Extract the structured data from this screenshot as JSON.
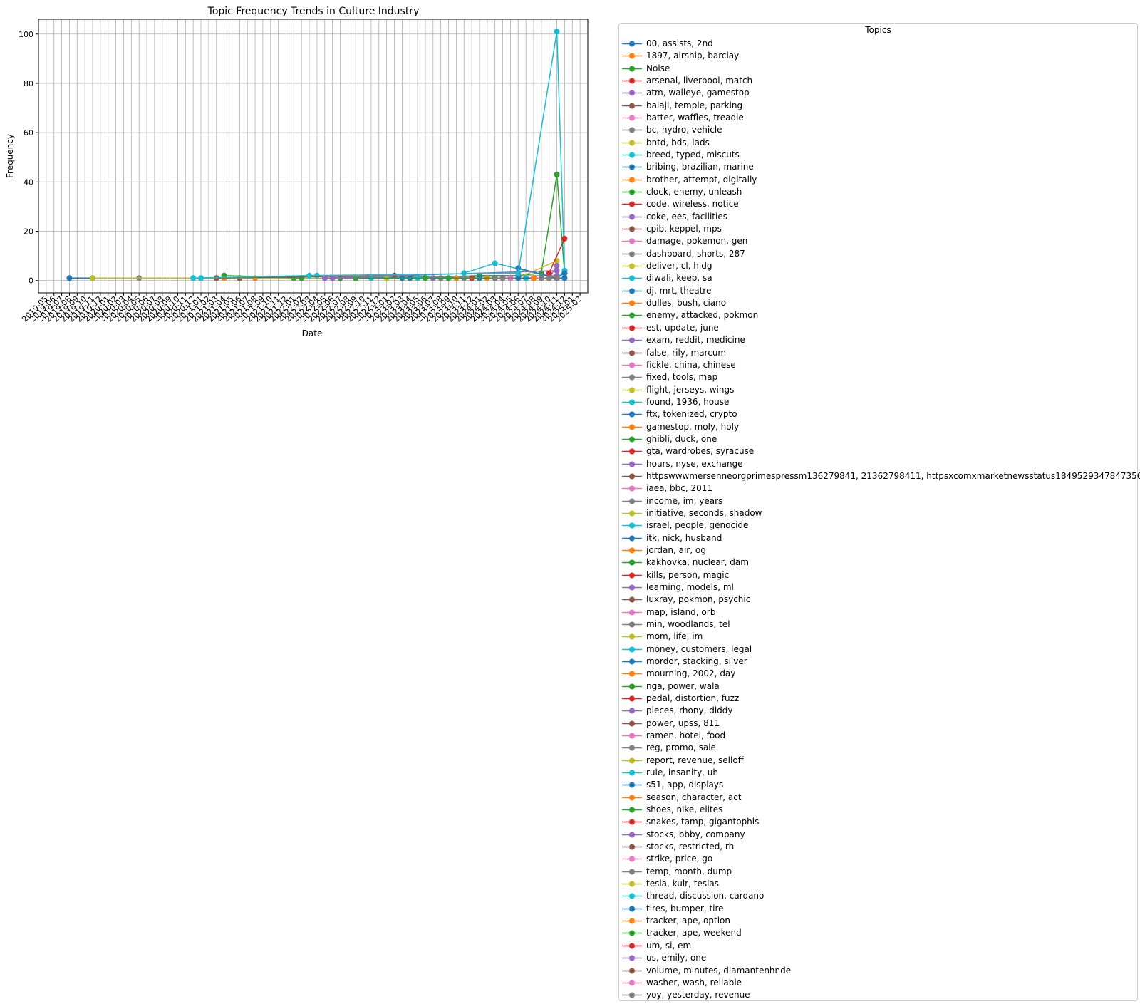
{
  "chart_data": {
    "type": "line",
    "title": "Topic Frequency Trends in Culture Industry",
    "xlabel": "Date",
    "ylabel": "Frequency",
    "ylim": [
      -5,
      106
    ],
    "yticks": [
      0,
      20,
      40,
      60,
      80,
      100
    ],
    "xlim": [
      "2019-04",
      "2025-03"
    ],
    "xticks": [
      "2019-05",
      "2019-06",
      "2019-07",
      "2019-08",
      "2019-09",
      "2019-10",
      "2019-11",
      "2019-12",
      "2020-01",
      "2020-02",
      "2020-03",
      "2020-04",
      "2020-05",
      "2020-06",
      "2020-07",
      "2020-08",
      "2020-09",
      "2020-10",
      "2020-11",
      "2020-12",
      "2021-01",
      "2021-02",
      "2021-03",
      "2021-04",
      "2021-05",
      "2021-06",
      "2021-07",
      "2021-08",
      "2021-09",
      "2021-10",
      "2021-11",
      "2021-12",
      "2022-01",
      "2022-02",
      "2022-03",
      "2022-04",
      "2022-05",
      "2022-06",
      "2022-07",
      "2022-08",
      "2022-09",
      "2022-10",
      "2022-11",
      "2022-12",
      "2023-01",
      "2023-02",
      "2023-03",
      "2023-04",
      "2023-05",
      "2023-06",
      "2023-07",
      "2023-08",
      "2023-09",
      "2023-10",
      "2023-11",
      "2023-12",
      "2024-01",
      "2024-02",
      "2024-03",
      "2024-04",
      "2024-05",
      "2024-06",
      "2024-07",
      "2024-08",
      "2024-09",
      "2024-10",
      "2024-11",
      "2024-12",
      "2025-01",
      "2025-02"
    ],
    "grid": true,
    "legend_title": "Topics",
    "legend_position": "outside-right",
    "palette": [
      "#1f77b4",
      "#ff7f0e",
      "#2ca02c",
      "#d62728",
      "#9467bd",
      "#8c564b",
      "#e377c2",
      "#7f7f7f",
      "#bcbd22",
      "#17becf"
    ],
    "series": [
      {
        "name": "00, assists, 2nd",
        "x": [
          "2019-08",
          "2019-11",
          "2024-08"
        ],
        "y": [
          1,
          1,
          1
        ]
      },
      {
        "name": "1897, airship, barclay",
        "x": [
          "2021-04",
          "2021-08"
        ],
        "y": [
          1,
          1
        ]
      },
      {
        "name": "Noise",
        "x": [
          "2021-03",
          "2021-06",
          "2022-01",
          "2022-07",
          "2023-01",
          "2023-06",
          "2024-01",
          "2024-06",
          "2024-09",
          "2024-11",
          "2024-12"
        ],
        "y": [
          1,
          1,
          1,
          1,
          1,
          1,
          2,
          2,
          3,
          43,
          3
        ]
      },
      {
        "name": "arsenal, liverpool, match",
        "x": [
          "2024-04",
          "2024-12"
        ],
        "y": [
          1,
          1
        ]
      },
      {
        "name": "atm, walleye, gamestop",
        "x": [
          "2022-05",
          "2024-11"
        ],
        "y": [
          1,
          2
        ]
      },
      {
        "name": "balaji, temple, parking",
        "x": [
          "2021-06",
          "2024-11"
        ],
        "y": [
          1,
          1
        ]
      },
      {
        "name": "batter, waffles, treadle",
        "x": [
          "2024-10",
          "2024-11"
        ],
        "y": [
          1,
          1
        ]
      },
      {
        "name": "bc, hydro, vehicle",
        "x": [
          "2020-05",
          "2024-08"
        ],
        "y": [
          1,
          1
        ]
      },
      {
        "name": "bntd, bds, lads",
        "x": [
          "2019-11",
          "2024-11"
        ],
        "y": [
          1,
          1
        ]
      },
      {
        "name": "breed, typed, miscuts",
        "x": [
          "2021-01",
          "2022-04",
          "2024-02",
          "2024-11"
        ],
        "y": [
          1,
          2,
          1,
          1
        ]
      },
      {
        "name": "bribing, brazilian, marine",
        "x": [
          "2024-05",
          "2024-12"
        ],
        "y": [
          1,
          1
        ]
      },
      {
        "name": "brother, attempt, digitally",
        "x": [
          "2024-07",
          "2024-11"
        ],
        "y": [
          1,
          1
        ]
      },
      {
        "name": "clock, enemy, unleash",
        "x": [
          "2021-04",
          "2022-02"
        ],
        "y": [
          2,
          1
        ]
      },
      {
        "name": "code, wireless, notice",
        "x": [
          "2023-12",
          "2024-09"
        ],
        "y": [
          1,
          1
        ]
      },
      {
        "name": "coke, ees, facilities",
        "x": [
          "2023-06",
          "2024-11"
        ],
        "y": [
          1,
          1
        ]
      },
      {
        "name": "cpib, keppel, mps",
        "x": [
          "2021-03",
          "2023-02"
        ],
        "y": [
          1,
          2
        ]
      },
      {
        "name": "damage, pokemon, gen",
        "x": [
          "2024-08",
          "2024-11"
        ],
        "y": [
          1,
          1
        ]
      },
      {
        "name": "dashboard, shorts, 287",
        "x": [
          "2023-08",
          "2024-11"
        ],
        "y": [
          1,
          1
        ]
      },
      {
        "name": "deliver, cl, hldg",
        "x": [
          "2023-01",
          "2024-11"
        ],
        "y": [
          1,
          1
        ]
      },
      {
        "name": "diwali, keep, sa",
        "x": [
          "2022-11",
          "2024-11"
        ],
        "y": [
          1,
          1
        ]
      },
      {
        "name": "dj, mrt, theatre",
        "x": [
          "2023-04",
          "2024-11"
        ],
        "y": [
          1,
          1
        ]
      },
      {
        "name": "dulles, bush, ciano",
        "x": [
          "2023-10",
          "2024-11"
        ],
        "y": [
          1,
          1
        ]
      },
      {
        "name": "enemy, attacked, pokmon",
        "x": [
          "2023-09",
          "2024-11"
        ],
        "y": [
          1,
          1
        ]
      },
      {
        "name": "est, update, june",
        "x": [
          "2024-01",
          "2024-11"
        ],
        "y": [
          1,
          1
        ]
      },
      {
        "name": "exam, reddit, medicine",
        "x": [
          "2022-06",
          "2024-11"
        ],
        "y": [
          1,
          1
        ]
      },
      {
        "name": "false, rily, marcum",
        "x": [
          "2024-03",
          "2024-11"
        ],
        "y": [
          1,
          1
        ]
      },
      {
        "name": "fickle, china, chinese",
        "x": [
          "2024-09",
          "2024-11"
        ],
        "y": [
          1,
          1
        ]
      },
      {
        "name": "fixed, tools, map",
        "x": [
          "2023-11",
          "2024-11"
        ],
        "y": [
          1,
          1
        ]
      },
      {
        "name": "flight, jerseys, wings",
        "x": [
          "2024-06",
          "2024-11"
        ],
        "y": [
          1,
          8
        ]
      },
      {
        "name": "found, 1936, house",
        "x": [
          "2023-05",
          "2024-11"
        ],
        "y": [
          1,
          1
        ]
      },
      {
        "name": "ftx, tokenized, crypto",
        "x": [
          "2023-03",
          "2024-11"
        ],
        "y": [
          1,
          1
        ]
      },
      {
        "name": "gamestop, moly, holy",
        "x": [
          "2024-02",
          "2024-11"
        ],
        "y": [
          1,
          1
        ]
      },
      {
        "name": "ghibli, duck, one",
        "x": [
          "2022-09",
          "2024-11"
        ],
        "y": [
          1,
          1
        ]
      },
      {
        "name": "gta, wardrobes, syracuse",
        "x": [
          "2024-08",
          "2024-11"
        ],
        "y": [
          1,
          1
        ]
      },
      {
        "name": "hours, nyse, exchange",
        "x": [
          "2023-07",
          "2024-11"
        ],
        "y": [
          1,
          1
        ]
      },
      {
        "name": "httpswwwmersenneorgprimespressm136279841, 21362798411, httpsxcomxmarketnewsstatus1849529347847356923",
        "x": [
          "2024-10",
          "2024-11"
        ],
        "y": [
          1,
          1
        ]
      },
      {
        "name": "iaea, bbc, 2011",
        "x": [
          "2024-05",
          "2024-11"
        ],
        "y": [
          1,
          1
        ]
      },
      {
        "name": "income, im, years",
        "x": [
          "2024-04",
          "2024-11"
        ],
        "y": [
          1,
          1
        ]
      },
      {
        "name": "initiative, seconds, shadow",
        "x": [
          "2024-09",
          "2024-11"
        ],
        "y": [
          1,
          1
        ]
      },
      {
        "name": "israel, people, genocide",
        "x": [
          "2023-11",
          "2024-03",
          "2024-11"
        ],
        "y": [
          3,
          7,
          1
        ]
      },
      {
        "name": "itk, nick, husband",
        "x": [
          "2024-01",
          "2024-11"
        ],
        "y": [
          1,
          1
        ]
      },
      {
        "name": "jordan, air, og",
        "x": [
          "2024-07",
          "2024-11"
        ],
        "y": [
          1,
          1
        ]
      },
      {
        "name": "kakhovka, nuclear, dam",
        "x": [
          "2023-06",
          "2024-11"
        ],
        "y": [
          1,
          1
        ]
      },
      {
        "name": "kills, person, magic",
        "x": [
          "2024-08",
          "2024-11"
        ],
        "y": [
          1,
          1
        ]
      },
      {
        "name": "learning, models, ml",
        "x": [
          "2024-06",
          "2024-11"
        ],
        "y": [
          1,
          1
        ]
      },
      {
        "name": "luxray, pokmon, psychic",
        "x": [
          "2024-10",
          "2024-11"
        ],
        "y": [
          1,
          1
        ]
      },
      {
        "name": "map, island, orb",
        "x": [
          "2024-05",
          "2024-11"
        ],
        "y": [
          1,
          1
        ]
      },
      {
        "name": "min, woodlands, tel",
        "x": [
          "2024-03",
          "2024-11"
        ],
        "y": [
          1,
          1
        ]
      },
      {
        "name": "mom, life, im",
        "x": [
          "2024-06",
          "2024-11"
        ],
        "y": [
          1,
          1
        ]
      },
      {
        "name": "money, customers, legal",
        "x": [
          "2024-07",
          "2024-11"
        ],
        "y": [
          1,
          1
        ]
      },
      {
        "name": "mordor, stacking, silver",
        "x": [
          "2024-06",
          "2024-11"
        ],
        "y": [
          1,
          1
        ]
      },
      {
        "name": "mourning, 2002, day",
        "x": [
          "2024-08",
          "2024-11"
        ],
        "y": [
          1,
          1
        ]
      },
      {
        "name": "nga, power, wala",
        "x": [
          "2024-09",
          "2024-11"
        ],
        "y": [
          1,
          1
        ]
      },
      {
        "name": "pedal, distortion, fuzz",
        "x": [
          "2024-10",
          "2024-11"
        ],
        "y": [
          1,
          1
        ]
      },
      {
        "name": "pieces, rhony, diddy",
        "x": [
          "2024-10",
          "2024-11"
        ],
        "y": [
          1,
          6
        ]
      },
      {
        "name": "power, upss, 811",
        "x": [
          "2024-09",
          "2024-11"
        ],
        "y": [
          1,
          1
        ]
      },
      {
        "name": "ramen, hotel, food",
        "x": [
          "2024-10",
          "2024-11"
        ],
        "y": [
          1,
          1
        ]
      },
      {
        "name": "reg, promo, sale",
        "x": [
          "2024-09",
          "2024-11"
        ],
        "y": [
          1,
          1
        ]
      },
      {
        "name": "report, revenue, selloff",
        "x": [
          "2024-10",
          "2024-11"
        ],
        "y": [
          1,
          1
        ]
      },
      {
        "name": "rule, insanity, uh",
        "x": [
          "2024-11",
          "2024-12"
        ],
        "y": [
          1,
          4
        ]
      },
      {
        "name": "s51, app, displays",
        "x": [
          "2024-06",
          "2024-11"
        ],
        "y": [
          5,
          1
        ]
      },
      {
        "name": "season, character, act",
        "x": [
          "2024-10",
          "2024-11"
        ],
        "y": [
          1,
          1
        ]
      },
      {
        "name": "shoes, nike, elites",
        "x": [
          "2024-10",
          "2024-11"
        ],
        "y": [
          1,
          1
        ]
      },
      {
        "name": "snakes, tamp, gigantophis",
        "x": [
          "2024-10",
          "2024-11"
        ],
        "y": [
          1,
          1
        ]
      },
      {
        "name": "stocks, bbby, company",
        "x": [
          "2022-05",
          "2024-11"
        ],
        "y": [
          1,
          4
        ]
      },
      {
        "name": "stocks, restricted, rh",
        "x": [
          "2024-10",
          "2024-11"
        ],
        "y": [
          1,
          1
        ]
      },
      {
        "name": "strike, price, go",
        "x": [
          "2024-10",
          "2024-11"
        ],
        "y": [
          1,
          1
        ]
      },
      {
        "name": "temp, month, dump",
        "x": [
          "2024-10",
          "2024-11"
        ],
        "y": [
          1,
          1
        ]
      },
      {
        "name": "tesla, kulr, teslas",
        "x": [
          "2024-10",
          "2024-11"
        ],
        "y": [
          1,
          1
        ]
      },
      {
        "name": "thread, discussion, cardano",
        "x": [
          "2020-12",
          "2022-03",
          "2024-06",
          "2024-11",
          "2024-12"
        ],
        "y": [
          1,
          2,
          3,
          101,
          4
        ]
      },
      {
        "name": "tires, bumper, tire",
        "x": [
          "2024-11",
          "2024-12"
        ],
        "y": [
          1,
          3
        ]
      },
      {
        "name": "tracker, ape, option",
        "x": [
          "2024-10",
          "2024-11"
        ],
        "y": [
          1,
          1
        ]
      },
      {
        "name": "tracker, ape, weekend",
        "x": [
          "2024-10",
          "2024-11"
        ],
        "y": [
          1,
          1
        ]
      },
      {
        "name": "um, si, em",
        "x": [
          "2024-10",
          "2024-12"
        ],
        "y": [
          3,
          17
        ]
      },
      {
        "name": "us, emily, one",
        "x": [
          "2024-10",
          "2024-11"
        ],
        "y": [
          1,
          1
        ]
      },
      {
        "name": "volume, minutes, diamantenhnde",
        "x": [
          "2024-10",
          "2024-11"
        ],
        "y": [
          1,
          1
        ]
      },
      {
        "name": "washer, wash, reliable",
        "x": [
          "2024-10",
          "2024-11"
        ],
        "y": [
          1,
          1
        ]
      },
      {
        "name": "yoy, yesterday, revenue",
        "x": [
          "2024-10",
          "2024-11"
        ],
        "y": [
          1,
          1
        ]
      }
    ]
  }
}
